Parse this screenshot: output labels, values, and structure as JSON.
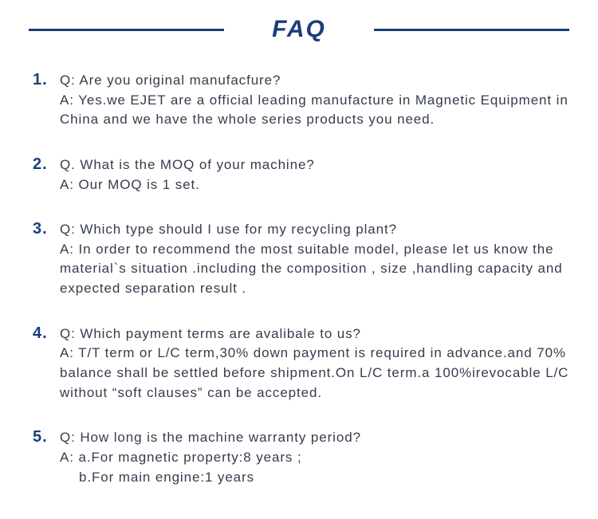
{
  "title": "FAQ",
  "colors": {
    "primary": "#1a3d7a",
    "text": "#343d4d",
    "background": "#ffffff"
  },
  "items": [
    {
      "number": "1.",
      "question": "Q: Are you  original manufacfure?",
      "answer": "A: Yes.we EJET are a official leading manufacture in Magnetic Equipment in China and we have the whole series products you need."
    },
    {
      "number": "2.",
      "question": "Q. What is the MOQ of your machine?",
      "answer": "A: Our MOQ is 1 set."
    },
    {
      "number": "3.",
      "question": "Q: Which type should I use for my recycling plant?",
      "answer": "A: In order to recommend the most suitable model, please let us know the material`s situation .including the composition , size ,handling capacity and expected separation result ."
    },
    {
      "number": "4.",
      "question": "Q: Which payment terms are avalibale to us?",
      "answer": "A: T/T term or L/C term,30% down payment is required in advance.and 70% balance shall be settled before shipment.On L/C term.a 100%irevocable L/C without “soft clauses” can be accepted."
    },
    {
      "number": "5.",
      "question": "Q: How long is the machine warranty period?",
      "answer": "A: a.For magnetic property:8 years ;",
      "answer_extra": "b.For main engine:1 years"
    }
  ]
}
